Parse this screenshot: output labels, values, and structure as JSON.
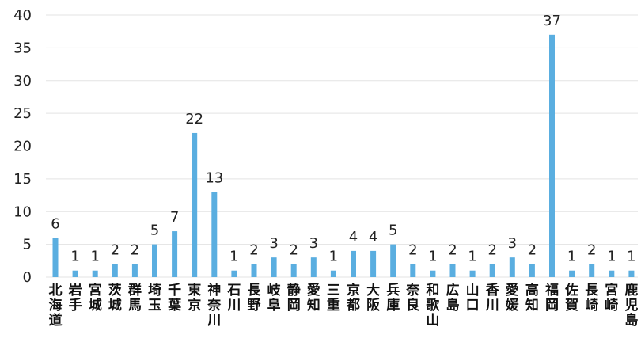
{
  "chart_data": {
    "type": "bar",
    "title": "",
    "xlabel": "",
    "ylabel": "",
    "ylim": [
      0,
      40
    ],
    "yticks": [
      0,
      5,
      10,
      15,
      20,
      25,
      30,
      35,
      40
    ],
    "grid": true,
    "legend": "none",
    "bar_color": "#5aaee0",
    "categories": [
      "北海道",
      "岩手",
      "宮城",
      "茨城",
      "群馬",
      "埼玉",
      "千葉",
      "東京",
      "神奈川",
      "石川",
      "長野",
      "岐阜",
      "静岡",
      "愛知",
      "三重",
      "京都",
      "大阪",
      "兵庫",
      "奈良",
      "和歌山",
      "広島",
      "山口",
      "香川",
      "愛媛",
      "高知",
      "福岡",
      "佐賀",
      "長崎",
      "宮崎",
      "鹿児島"
    ],
    "values": [
      6,
      1,
      1,
      2,
      2,
      5,
      7,
      22,
      13,
      1,
      2,
      3,
      2,
      3,
      1,
      4,
      4,
      5,
      2,
      1,
      2,
      1,
      2,
      3,
      2,
      37,
      1,
      2,
      1,
      1
    ]
  }
}
